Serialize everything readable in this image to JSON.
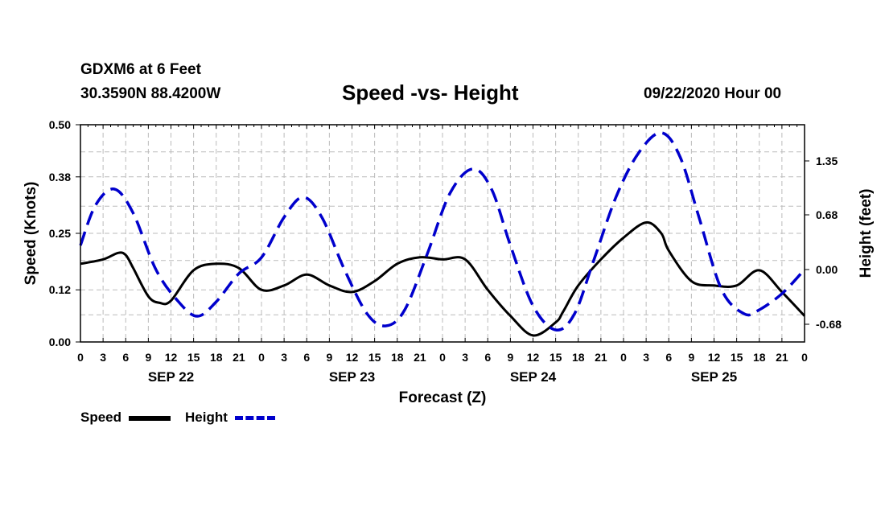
{
  "header": {
    "station": "GDXM6 at 6 Feet",
    "coords": "30.3590N 88.4200W",
    "title": "Speed -vs- Height",
    "datetime": "09/22/2020 Hour 00"
  },
  "legend": {
    "speed_label": "Speed",
    "height_label": "Height"
  },
  "colors": {
    "speed": "#000000",
    "height": "#0000cc",
    "grid": "#bbbbbb"
  },
  "chart_data": {
    "type": "line",
    "title": "Speed -vs- Height",
    "xlabel": "Forecast (Z)",
    "ylabel": "Speed (Knots)",
    "ylabel_right": "Height (feet)",
    "x_tick_labels": [
      "0",
      "3",
      "6",
      "9",
      "12",
      "15",
      "18",
      "21",
      "0",
      "3",
      "6",
      "9",
      "12",
      "15",
      "18",
      "21",
      "0",
      "3",
      "6",
      "9",
      "12",
      "15",
      "18",
      "21",
      "0",
      "3",
      "6",
      "9",
      "12",
      "15",
      "18",
      "21",
      "0"
    ],
    "day_labels": [
      {
        "label": "SEP 22",
        "hour": 12
      },
      {
        "label": "SEP 23",
        "hour": 36
      },
      {
        "label": "SEP 24",
        "hour": 60
      },
      {
        "label": "SEP 25",
        "hour": 84
      }
    ],
    "xlim": [
      0,
      96
    ],
    "ylim": [
      0,
      0.5
    ],
    "ylim_right": [
      -0.9,
      1.8
    ],
    "y_ticks": [
      0.0,
      0.12,
      0.25,
      0.38,
      0.5
    ],
    "y_tick_labels": [
      "0.00",
      "0.12",
      "0.25",
      "0.38",
      "0.50"
    ],
    "y_right_ticks": [
      -0.68,
      0.0,
      0.68,
      1.35
    ],
    "y_right_tick_labels": [
      "-0.68",
      "0.00",
      "0.68",
      "1.35"
    ],
    "grid": true,
    "series": [
      {
        "name": "Speed",
        "axis": "left",
        "style": "solid",
        "x": [
          0,
          3,
          5,
          6,
          7,
          9,
          10.5,
          12,
          15,
          18,
          21,
          24,
          27,
          30,
          33,
          36,
          39,
          42,
          45,
          48,
          51,
          54,
          57,
          60,
          63,
          64,
          66,
          69,
          72,
          75,
          77,
          78,
          81,
          84,
          87,
          90,
          93,
          96
        ],
        "y": [
          0.18,
          0.19,
          0.205,
          0.2,
          0.17,
          0.105,
          0.09,
          0.095,
          0.165,
          0.18,
          0.17,
          0.12,
          0.13,
          0.155,
          0.13,
          0.115,
          0.14,
          0.18,
          0.195,
          0.19,
          0.19,
          0.12,
          0.06,
          0.015,
          0.045,
          0.07,
          0.13,
          0.19,
          0.24,
          0.275,
          0.25,
          0.21,
          0.14,
          0.13,
          0.13,
          0.165,
          0.115,
          0.06
        ]
      },
      {
        "name": "Height",
        "axis": "right",
        "style": "dashed",
        "x": [
          0,
          2,
          4.5,
          7,
          10,
          13,
          15.5,
          18,
          21,
          24,
          27,
          29.5,
          32,
          35,
          38,
          40.5,
          43,
          46,
          49,
          52,
          54.5,
          57,
          60,
          63,
          65.5,
          68,
          71,
          74,
          77,
          79.5,
          82,
          85,
          88,
          90,
          93,
          96
        ],
        "y": [
          0.3,
          0.8,
          1.0,
          0.7,
          0.0,
          -0.4,
          -0.58,
          -0.4,
          -0.05,
          0.15,
          0.65,
          0.9,
          0.65,
          0.0,
          -0.55,
          -0.7,
          -0.5,
          0.2,
          0.95,
          1.25,
          1.0,
          0.3,
          -0.45,
          -0.75,
          -0.55,
          0.1,
          0.9,
          1.45,
          1.7,
          1.4,
          0.65,
          -0.25,
          -0.55,
          -0.5,
          -0.3,
          0.0
        ]
      }
    ]
  }
}
